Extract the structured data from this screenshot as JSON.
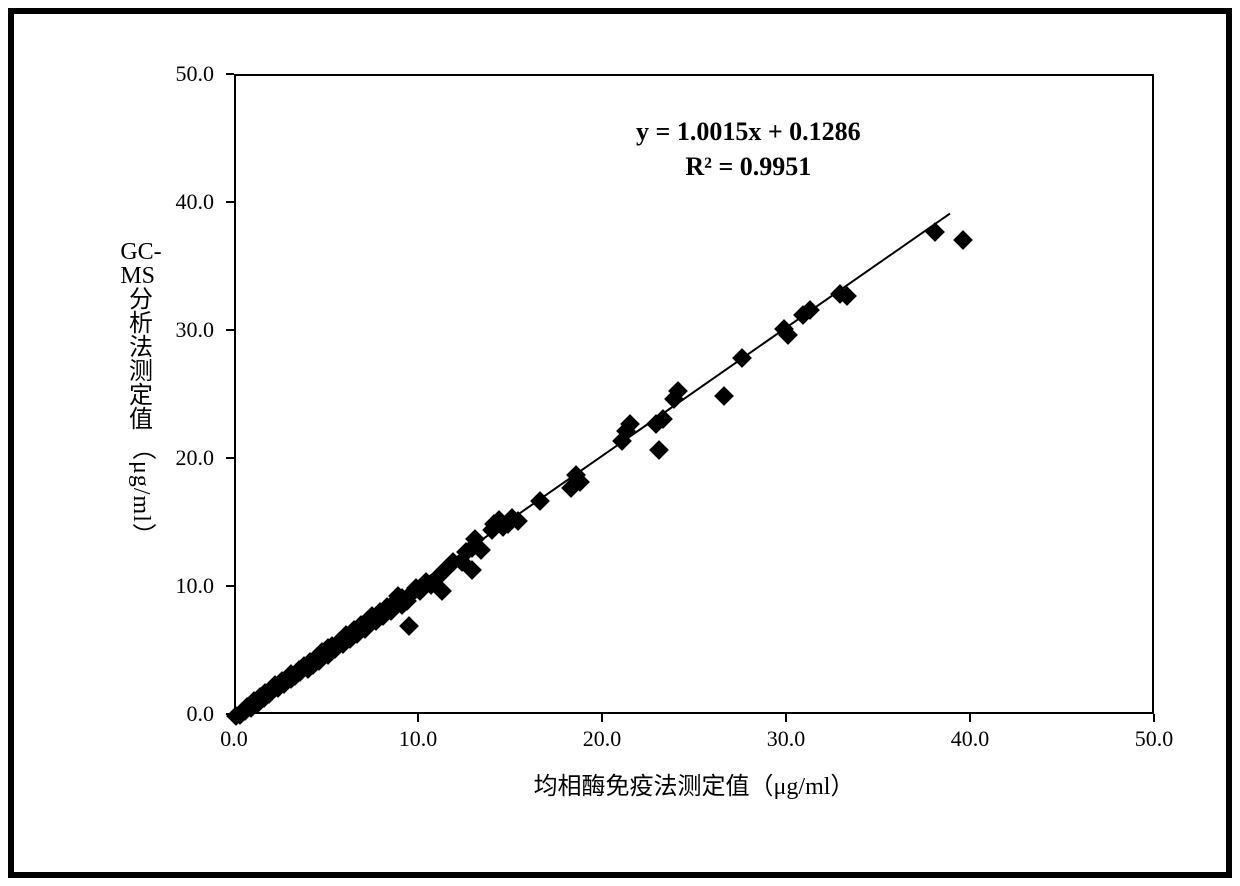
{
  "chart": {
    "type": "scatter",
    "background_color": "#ffffff",
    "border_color": "#000000",
    "frame_border_width": 6,
    "plot_border_width": 2,
    "xlabel": "均相酶免疫法测定值（μg/ml）",
    "ylabel_prefix": "GC-MS",
    "ylabel_chars": [
      "分",
      "析",
      "法",
      "测",
      "定",
      "值"
    ],
    "ylabel_unit": "（μg/ml）",
    "label_fontsize": 24,
    "tick_fontsize": 22,
    "xlim": [
      0,
      50
    ],
    "ylim": [
      0,
      50
    ],
    "xticks": [
      "0.0",
      "10.0",
      "20.0",
      "30.0",
      "40.0",
      "50.0"
    ],
    "yticks": [
      "0.0",
      "10.0",
      "20.0",
      "30.0",
      "40.0",
      "50.0"
    ],
    "annotation_line1": "y = 1.0015x + 0.1286",
    "annotation_line2": "R² = 0.9951",
    "annotation_fontsize": 26,
    "marker_size": 14,
    "marker_color": "#000000",
    "marker_style": "diamond",
    "line_color": "#000000",
    "line_width": 2,
    "regression": {
      "slope": 1.0015,
      "intercept": 0.1286,
      "x_start": 0,
      "x_end": 39
    },
    "data": [
      {
        "x": 0.0,
        "y": 0.0
      },
      {
        "x": 0.2,
        "y": 0.1
      },
      {
        "x": 0.3,
        "y": 0.3
      },
      {
        "x": 0.5,
        "y": 0.4
      },
      {
        "x": 0.6,
        "y": 0.7
      },
      {
        "x": 0.8,
        "y": 0.6
      },
      {
        "x": 0.9,
        "y": 1.0
      },
      {
        "x": 1.0,
        "y": 1.2
      },
      {
        "x": 1.2,
        "y": 1.0
      },
      {
        "x": 1.3,
        "y": 1.5
      },
      {
        "x": 1.5,
        "y": 1.4
      },
      {
        "x": 1.6,
        "y": 1.8
      },
      {
        "x": 1.8,
        "y": 1.7
      },
      {
        "x": 2.0,
        "y": 2.1
      },
      {
        "x": 2.1,
        "y": 2.4
      },
      {
        "x": 2.3,
        "y": 2.2
      },
      {
        "x": 2.5,
        "y": 2.7
      },
      {
        "x": 2.6,
        "y": 2.5
      },
      {
        "x": 2.8,
        "y": 3.0
      },
      {
        "x": 3.0,
        "y": 2.9
      },
      {
        "x": 3.0,
        "y": 3.3
      },
      {
        "x": 3.2,
        "y": 3.1
      },
      {
        "x": 3.4,
        "y": 3.6
      },
      {
        "x": 3.5,
        "y": 3.4
      },
      {
        "x": 3.7,
        "y": 3.9
      },
      {
        "x": 3.9,
        "y": 3.7
      },
      {
        "x": 4.0,
        "y": 4.2
      },
      {
        "x": 4.2,
        "y": 4.0
      },
      {
        "x": 4.4,
        "y": 4.6
      },
      {
        "x": 4.5,
        "y": 4.3
      },
      {
        "x": 4.7,
        "y": 5.0
      },
      {
        "x": 5.0,
        "y": 4.8
      },
      {
        "x": 5.0,
        "y": 5.3
      },
      {
        "x": 5.2,
        "y": 5.5
      },
      {
        "x": 5.4,
        "y": 5.2
      },
      {
        "x": 5.6,
        "y": 5.8
      },
      {
        "x": 5.8,
        "y": 5.6
      },
      {
        "x": 6.0,
        "y": 6.3
      },
      {
        "x": 6.2,
        "y": 6.0
      },
      {
        "x": 6.4,
        "y": 6.7
      },
      {
        "x": 6.6,
        "y": 6.4
      },
      {
        "x": 6.8,
        "y": 7.1
      },
      {
        "x": 7.0,
        "y": 6.8
      },
      {
        "x": 7.2,
        "y": 7.5
      },
      {
        "x": 7.4,
        "y": 7.8
      },
      {
        "x": 7.6,
        "y": 7.4
      },
      {
        "x": 7.8,
        "y": 8.1
      },
      {
        "x": 8.0,
        "y": 7.8
      },
      {
        "x": 8.2,
        "y": 8.5
      },
      {
        "x": 8.4,
        "y": 8.2
      },
      {
        "x": 8.6,
        "y": 8.8
      },
      {
        "x": 8.8,
        "y": 9.4
      },
      {
        "x": 9.0,
        "y": 8.7
      },
      {
        "x": 9.0,
        "y": 9.2
      },
      {
        "x": 9.3,
        "y": 9.0
      },
      {
        "x": 9.4,
        "y": 7.0
      },
      {
        "x": 9.6,
        "y": 9.7
      },
      {
        "x": 9.8,
        "y": 10.0
      },
      {
        "x": 10.0,
        "y": 9.8
      },
      {
        "x": 10.3,
        "y": 10.5
      },
      {
        "x": 10.6,
        "y": 10.2
      },
      {
        "x": 10.9,
        "y": 10.8
      },
      {
        "x": 11.2,
        "y": 9.8
      },
      {
        "x": 11.4,
        "y": 11.5
      },
      {
        "x": 11.8,
        "y": 12.0
      },
      {
        "x": 12.3,
        "y": 12.0
      },
      {
        "x": 12.5,
        "y": 12.8
      },
      {
        "x": 12.8,
        "y": 11.4
      },
      {
        "x": 12.8,
        "y": 13.1
      },
      {
        "x": 13.0,
        "y": 13.8
      },
      {
        "x": 13.3,
        "y": 13.0
      },
      {
        "x": 13.9,
        "y": 14.5
      },
      {
        "x": 14.0,
        "y": 15.0
      },
      {
        "x": 14.3,
        "y": 15.3
      },
      {
        "x": 14.5,
        "y": 14.8
      },
      {
        "x": 14.8,
        "y": 15.0
      },
      {
        "x": 15.0,
        "y": 15.5
      },
      {
        "x": 15.3,
        "y": 15.2
      },
      {
        "x": 16.5,
        "y": 16.8
      },
      {
        "x": 18.2,
        "y": 17.8
      },
      {
        "x": 18.5,
        "y": 18.8
      },
      {
        "x": 18.7,
        "y": 18.3
      },
      {
        "x": 21.0,
        "y": 21.5
      },
      {
        "x": 21.2,
        "y": 22.3
      },
      {
        "x": 21.4,
        "y": 22.8
      },
      {
        "x": 22.8,
        "y": 22.8
      },
      {
        "x": 23.0,
        "y": 20.8
      },
      {
        "x": 23.2,
        "y": 23.2
      },
      {
        "x": 23.8,
        "y": 24.8
      },
      {
        "x": 24.0,
        "y": 25.4
      },
      {
        "x": 26.5,
        "y": 25.0
      },
      {
        "x": 27.5,
        "y": 28.0
      },
      {
        "x": 29.8,
        "y": 30.2
      },
      {
        "x": 30.0,
        "y": 29.8
      },
      {
        "x": 30.8,
        "y": 31.3
      },
      {
        "x": 31.2,
        "y": 31.7
      },
      {
        "x": 32.8,
        "y": 33.0
      },
      {
        "x": 33.2,
        "y": 32.8
      },
      {
        "x": 38.0,
        "y": 37.8
      },
      {
        "x": 39.5,
        "y": 37.2
      }
    ]
  }
}
